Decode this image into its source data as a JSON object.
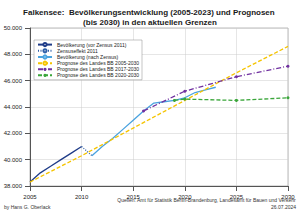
{
  "chart_data": {
    "type": "line",
    "title": "Falkensee:  Bevölkerungsentwicklung (2005-2023) und Prognosen (bis 2030) in den aktuellen Grenzen",
    "xlim": [
      2005,
      2030
    ],
    "xticks": [
      2005,
      2010,
      2015,
      2020,
      2025,
      2030
    ],
    "ylim": [
      38000,
      50000
    ],
    "yticks": [
      {
        "value": 38000,
        "label": "38.000"
      },
      {
        "value": 40000,
        "label": "40.000"
      },
      {
        "value": 42000,
        "label": "42.000"
      },
      {
        "value": 44000,
        "label": "44.000"
      },
      {
        "value": 46000,
        "label": "46.000"
      },
      {
        "value": 48000,
        "label": "48.000"
      },
      {
        "value": 50000,
        "label": "50.000"
      }
    ],
    "grid": true,
    "legend": "top-left",
    "series": [
      {
        "name": "Bevölkerung (vor Zensus 2011)",
        "color": "#1f3c88",
        "line_style": "solid",
        "marker": "none",
        "x": [
          2005,
          2006,
          2007,
          2008,
          2009,
          2010
        ],
        "values": [
          38300,
          39000,
          39500,
          40000,
          40500,
          41000
        ]
      },
      {
        "name": "Zensuseffekt 2011",
        "color": "#2e5fa8",
        "line_style": "dotted",
        "marker": "none",
        "x": [
          2010,
          2011
        ],
        "values": [
          41000,
          40300
        ]
      },
      {
        "name": "Bevölkerung (nach Zensus)",
        "color": "#4aa3df",
        "line_style": "solid",
        "marker": "none",
        "x": [
          2011,
          2012,
          2013,
          2014,
          2015,
          2016,
          2017,
          2018,
          2019,
          2020,
          2021,
          2022,
          2023
        ],
        "values": [
          40300,
          41000,
          41600,
          42300,
          43000,
          43700,
          44300,
          44400,
          44500,
          44700,
          45100,
          45300,
          45500
        ]
      },
      {
        "name": "Prognose des Landes BB 2005-2030",
        "color": "#f5c400",
        "line_style": "dashed",
        "marker": "none",
        "x": [
          2005,
          2010,
          2015,
          2020,
          2025,
          2030
        ],
        "values": [
          38300,
          40300,
          42400,
          44500,
          46600,
          48600
        ]
      },
      {
        "name": "Prognose des Landes BB 2017-2030",
        "color": "#7030a0",
        "line_style": "dashdot",
        "marker": "circle",
        "x": [
          2016,
          2020,
          2025,
          2030
        ],
        "values": [
          43700,
          45200,
          46300,
          47100
        ]
      },
      {
        "name": "Prognose des Landes BB 2020-2030",
        "color": "#3aa63a",
        "line_style": "dashed",
        "marker": "circle",
        "x": [
          2019,
          2020,
          2025,
          2030
        ],
        "values": [
          44500,
          44600,
          44500,
          44700
        ]
      }
    ],
    "annotations": [
      "by Hans G. Oberlack",
      "Quellen: Amt für Statistik Berlin-Brandenburg, Landesamt für Bauen und Verkehr",
      "26.07.2024"
    ]
  }
}
